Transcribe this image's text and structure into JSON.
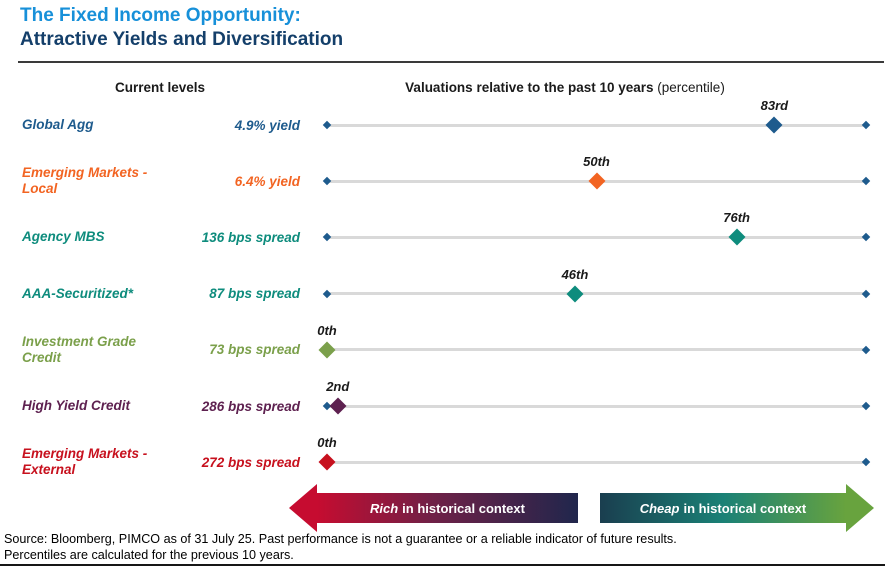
{
  "title": {
    "line1": "The Fixed Income Opportunity:",
    "line2": "Attractive Yields and Diversification"
  },
  "headers": {
    "current_levels": "Current levels",
    "valuations_bold": "Valuations relative to the past 10 years",
    "valuations_normal": " (percentile)"
  },
  "chart_data": {
    "type": "scatter",
    "subtype": "dot-plot-percentile",
    "axis": {
      "min": 0,
      "max": 100,
      "unit": "percentile",
      "gridlines": false
    },
    "rows": [
      {
        "label": "Global Agg",
        "current_level": "4.9% yield",
        "percentile": 83,
        "percentile_label": "83rd",
        "color": "#1e5b8d"
      },
      {
        "label": "Emerging Markets - Local",
        "current_level": "6.4% yield",
        "percentile": 50,
        "percentile_label": "50th",
        "color": "#f26422"
      },
      {
        "label": "Agency MBS",
        "current_level": "136 bps spread",
        "percentile": 76,
        "percentile_label": "76th",
        "color": "#0e8c7d"
      },
      {
        "label": "AAA-Securitized*",
        "current_level": "87 bps spread",
        "percentile": 46,
        "percentile_label": "46th",
        "color": "#0e8c7d"
      },
      {
        "label": "Investment Grade Credit",
        "current_level": "73 bps spread",
        "percentile": 0,
        "percentile_label": "0th",
        "color": "#7ba04b"
      },
      {
        "label": "High Yield Credit",
        "current_level": "286 bps spread",
        "percentile": 2,
        "percentile_label": "2nd",
        "color": "#5e2150"
      },
      {
        "label": "Emerging Markets - External",
        "current_level": "272 bps spread",
        "percentile": 0,
        "percentile_label": "0th",
        "color": "#c7111e"
      }
    ],
    "track_color": "#d9d9d9",
    "endpoint_color": "#1e5b8d",
    "legend": [
      "Rich in historical context",
      "Cheap in historical context"
    ]
  },
  "arrows": {
    "rich": {
      "word": "Rich",
      "rest": "in historical context",
      "gradient": [
        "#c60c30",
        "#6e2147",
        "#20264c"
      ]
    },
    "cheap": {
      "word": "Cheap",
      "rest": "in historical context",
      "gradient": [
        "#1a3e4f",
        "#1a8176",
        "#68a33e"
      ]
    }
  },
  "footer": {
    "line1": "Source: Bloomberg, PIMCO as of 31 July 25. Past performance is not a guarantee or a reliable indicator of future results.",
    "line2": "Percentiles are calculated for the previous 10 years."
  },
  "colors": {
    "title_accent": "#1790d9",
    "title_navy": "#143f6a",
    "rule": "#3a3a3a"
  }
}
